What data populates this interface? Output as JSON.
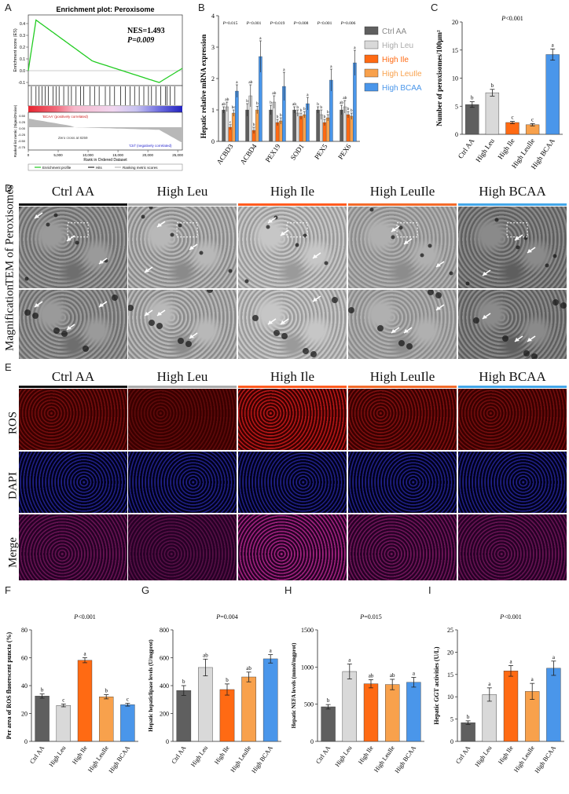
{
  "panel_letters": {
    "A": "A",
    "B": "B",
    "C": "C",
    "D": "D",
    "E": "E",
    "F": "F",
    "G": "G",
    "H": "H",
    "I": "I"
  },
  "panelA": {
    "title": "Enrichment plot: Peroxisome",
    "nes": "NES=1.493",
    "p": "P=0.009",
    "ylabel_top": "Enrichment score (ES)",
    "ylabel_bottom": "Ranked list metric (Signal2Noise)",
    "xlabel": "Rank in Ordered Dataset",
    "pos_note": "'BCAA' (positively correlated)",
    "neg_note": "'Ctrl' (negatively correlated)",
    "zero_cross": "Zero cross at 8259",
    "legend": [
      "Enrichment profile",
      "Hits",
      "Ranking metric scores"
    ],
    "es_ticks": [
      "0.4",
      "0.3",
      "0.2",
      "0.1",
      "0.0",
      "-0.1"
    ],
    "rank_ticks": [
      "0",
      "5,000",
      "10,000",
      "15,000",
      "20,000",
      "25,000"
    ],
    "metric_ticks": [
      "0.50",
      "0.25",
      "0.00",
      "-0.25",
      "-0.50",
      "-0.75"
    ]
  },
  "groups": [
    "Ctrl AA",
    "High Leu",
    "High Ile",
    "High LeuIle",
    "High BCAA"
  ],
  "group_colors": [
    "#5f5f5f",
    "#d9d9d9",
    "#ff6a13",
    "#f8a14c",
    "#4a96ea"
  ],
  "header_line_colors": [
    "#111111",
    "#a9a9a9",
    "#ff5a1f",
    "#f26a2a",
    "#43a6e8"
  ],
  "panelD": {
    "row_labels": [
      "TEM of Peroxisomes",
      "Magnification"
    ]
  },
  "panelE": {
    "row_labels": [
      "ROS",
      "DAPI",
      "Merge"
    ]
  },
  "chart_data": [
    {
      "id": "B",
      "type": "bar",
      "ylabel": "Hepatic relative mRNA expression",
      "categories": [
        "ACBD3",
        "ACBD4",
        "PEX19",
        "SOD1",
        "PEX5",
        "PEX6"
      ],
      "pvalues": [
        "P=0.015",
        "P<0.001",
        "P=0.019",
        "P=0.008",
        "P<0.001",
        "P=0.006"
      ],
      "ylim": [
        0,
        4
      ],
      "yticks": [
        "0",
        "1",
        "2",
        "3",
        "4"
      ],
      "legend_labels": [
        "Ctrl AA",
        "High Leu",
        "High Ile",
        "High LeuIle",
        "High BCAA"
      ],
      "series": [
        {
          "name": "Ctrl AA",
          "values": [
            1.0,
            1.0,
            1.0,
            1.0,
            1.0,
            1.0
          ]
        },
        {
          "name": "High Leu",
          "values": [
            1.1,
            1.45,
            1.25,
            0.9,
            0.85,
            1.1
          ]
        },
        {
          "name": "High Ile",
          "values": [
            0.45,
            0.35,
            0.6,
            0.8,
            0.6,
            0.85
          ]
        },
        {
          "name": "High LeuIle",
          "values": [
            0.9,
            1.0,
            0.65,
            0.85,
            0.75,
            0.8
          ]
        },
        {
          "name": "High BCAA",
          "values": [
            1.6,
            2.7,
            1.75,
            1.2,
            1.95,
            2.5
          ]
        }
      ],
      "errors": [
        [
          0.1,
          0.2,
          0.15,
          0.1,
          0.1,
          0.15
        ],
        [
          0.15,
          0.35,
          0.2,
          0.1,
          0.15,
          0.2
        ],
        [
          0.08,
          0.1,
          0.1,
          0.1,
          0.1,
          0.1
        ],
        [
          0.1,
          0.12,
          0.1,
          0.1,
          0.1,
          0.1
        ],
        [
          0.2,
          0.5,
          0.45,
          0.2,
          0.35,
          0.4
        ]
      ],
      "letters": [
        [
          "ab",
          "b",
          "b",
          "ab",
          "b",
          "ab"
        ],
        [
          "ab",
          "ab",
          "ab",
          "b",
          "b",
          "ab"
        ],
        [
          "c",
          "b",
          "b",
          "b",
          "b",
          "b"
        ],
        [
          "bc",
          "b",
          "b",
          "b",
          "b",
          "b"
        ],
        [
          "a",
          "a",
          "a",
          "a",
          "a",
          "a"
        ]
      ]
    },
    {
      "id": "C",
      "type": "bar",
      "ylabel": "Number of peroxisomes/100μm²",
      "p": "P<0.001",
      "categories": [
        "Ctrl AA",
        "High Leu",
        "High Ile",
        "High LeuIle",
        "High BCAA"
      ],
      "values": [
        5.3,
        7.4,
        2.1,
        1.7,
        14.2
      ],
      "errors": [
        0.5,
        0.6,
        0.2,
        0.2,
        1.0
      ],
      "letters": [
        "b",
        "b",
        "c",
        "c",
        "a"
      ],
      "ylim": [
        0,
        20
      ],
      "yticks": [
        "0",
        "5",
        "10",
        "15",
        "20"
      ]
    },
    {
      "id": "F",
      "type": "bar",
      "ylabel": "Per area of ROS fluorescent puncta (%)",
      "p": "P<0.001",
      "categories": [
        "Ctrl AA",
        "High Leu",
        "High Ile",
        "High LeuIle",
        "High BCAA"
      ],
      "values": [
        32.5,
        25.8,
        58.2,
        32.0,
        26.3
      ],
      "errors": [
        1.5,
        1.0,
        1.8,
        1.5,
        1.0
      ],
      "letters": [
        "b",
        "c",
        "a",
        "b",
        "c"
      ],
      "ylim": [
        0,
        80
      ],
      "yticks": [
        "0",
        "20",
        "40",
        "60",
        "80"
      ]
    },
    {
      "id": "G",
      "type": "bar",
      "ylabel": "Hepatic hepaticlipase levels (U/mgprot)",
      "p": "P=0.004",
      "categories": [
        "Ctrl AA",
        "High Leu",
        "High Ile",
        "High LeuIle",
        "High BCAA"
      ],
      "values": [
        365,
        530,
        372,
        462,
        592
      ],
      "errors": [
        35,
        60,
        40,
        35,
        30
      ],
      "letters": [
        "b",
        "ab",
        "b",
        "ab",
        "a"
      ],
      "ylim": [
        0,
        800
      ],
      "yticks": [
        "0",
        "200",
        "400",
        "600",
        "800"
      ]
    },
    {
      "id": "H",
      "type": "bar",
      "ylabel": "Hepatic NEFA levels (mmol/mgprot)",
      "p": "P=0.015",
      "categories": [
        "Ctrl AA",
        "High Leu",
        "High Ile",
        "High LeuIle",
        "High BCAA"
      ],
      "values": [
        465,
        940,
        775,
        765,
        795
      ],
      "errors": [
        30,
        100,
        55,
        70,
        65
      ],
      "letters": [
        "b",
        "a",
        "ab",
        "ab",
        "a"
      ],
      "ylim": [
        0,
        1500
      ],
      "yticks": [
        "0",
        "500",
        "1000",
        "1500"
      ]
    },
    {
      "id": "I",
      "type": "bar",
      "ylabel": "Hepatic GGT activities (U/L)",
      "p": "P<0.001",
      "categories": [
        "Ctrl AA",
        "High Leu",
        "High Ile",
        "High LeuIle",
        "High BCAA"
      ],
      "values": [
        4.2,
        10.5,
        15.8,
        11.2,
        16.4
      ],
      "errors": [
        0.4,
        1.5,
        1.2,
        1.8,
        1.6
      ],
      "letters": [
        "b",
        "a",
        "a",
        "a",
        "a"
      ],
      "ylim": [
        0,
        25
      ],
      "yticks": [
        "0",
        "5",
        "10",
        "15",
        "20",
        "25"
      ]
    }
  ]
}
